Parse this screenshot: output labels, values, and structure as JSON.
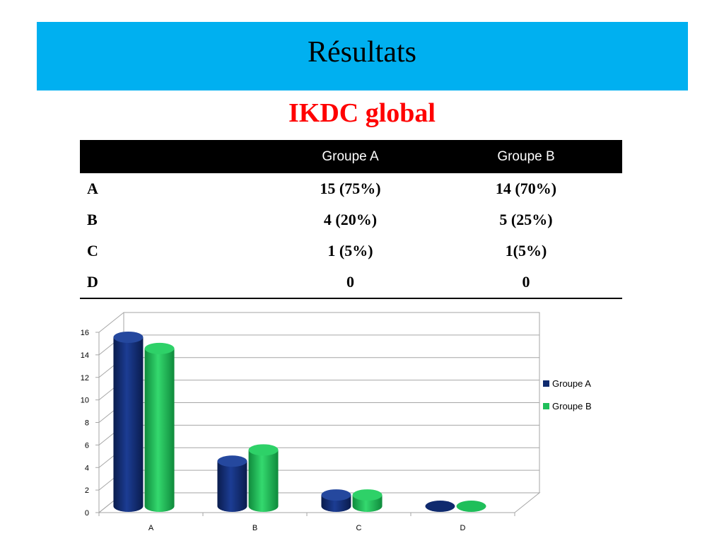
{
  "slide": {
    "title": "Résultats",
    "subtitle": "IKDC global"
  },
  "table": {
    "headers": [
      "",
      "Groupe A",
      "Groupe B"
    ],
    "rows": [
      {
        "label": "A",
        "a": "15 (75%)",
        "b": "14 (70%)"
      },
      {
        "label": "B",
        "a": "4 (20%)",
        "b": "5 (25%)"
      },
      {
        "label": "C",
        "a": "1 (5%)",
        "b": "1(5%)"
      },
      {
        "label": "D",
        "a": "0",
        "b": "0"
      }
    ]
  },
  "colors": {
    "banner": "#00b0f0",
    "subtitle": "#ff0000",
    "groupe_a": "#0f2a6e",
    "groupe_b": "#1fbf5a"
  },
  "chart_data": {
    "type": "bar",
    "categories": [
      "A",
      "B",
      "C",
      "D"
    ],
    "series": [
      {
        "name": "Groupe A",
        "values": [
          15,
          4,
          1,
          0
        ]
      },
      {
        "name": "Groupe B",
        "values": [
          14,
          5,
          1,
          0
        ]
      }
    ],
    "ylim": [
      0,
      16
    ],
    "yticks": [
      "0",
      "2",
      "4",
      "6",
      "8",
      "10",
      "12",
      "14",
      "16"
    ],
    "grid": true,
    "legend": "right",
    "style": "3d-cylinder"
  }
}
